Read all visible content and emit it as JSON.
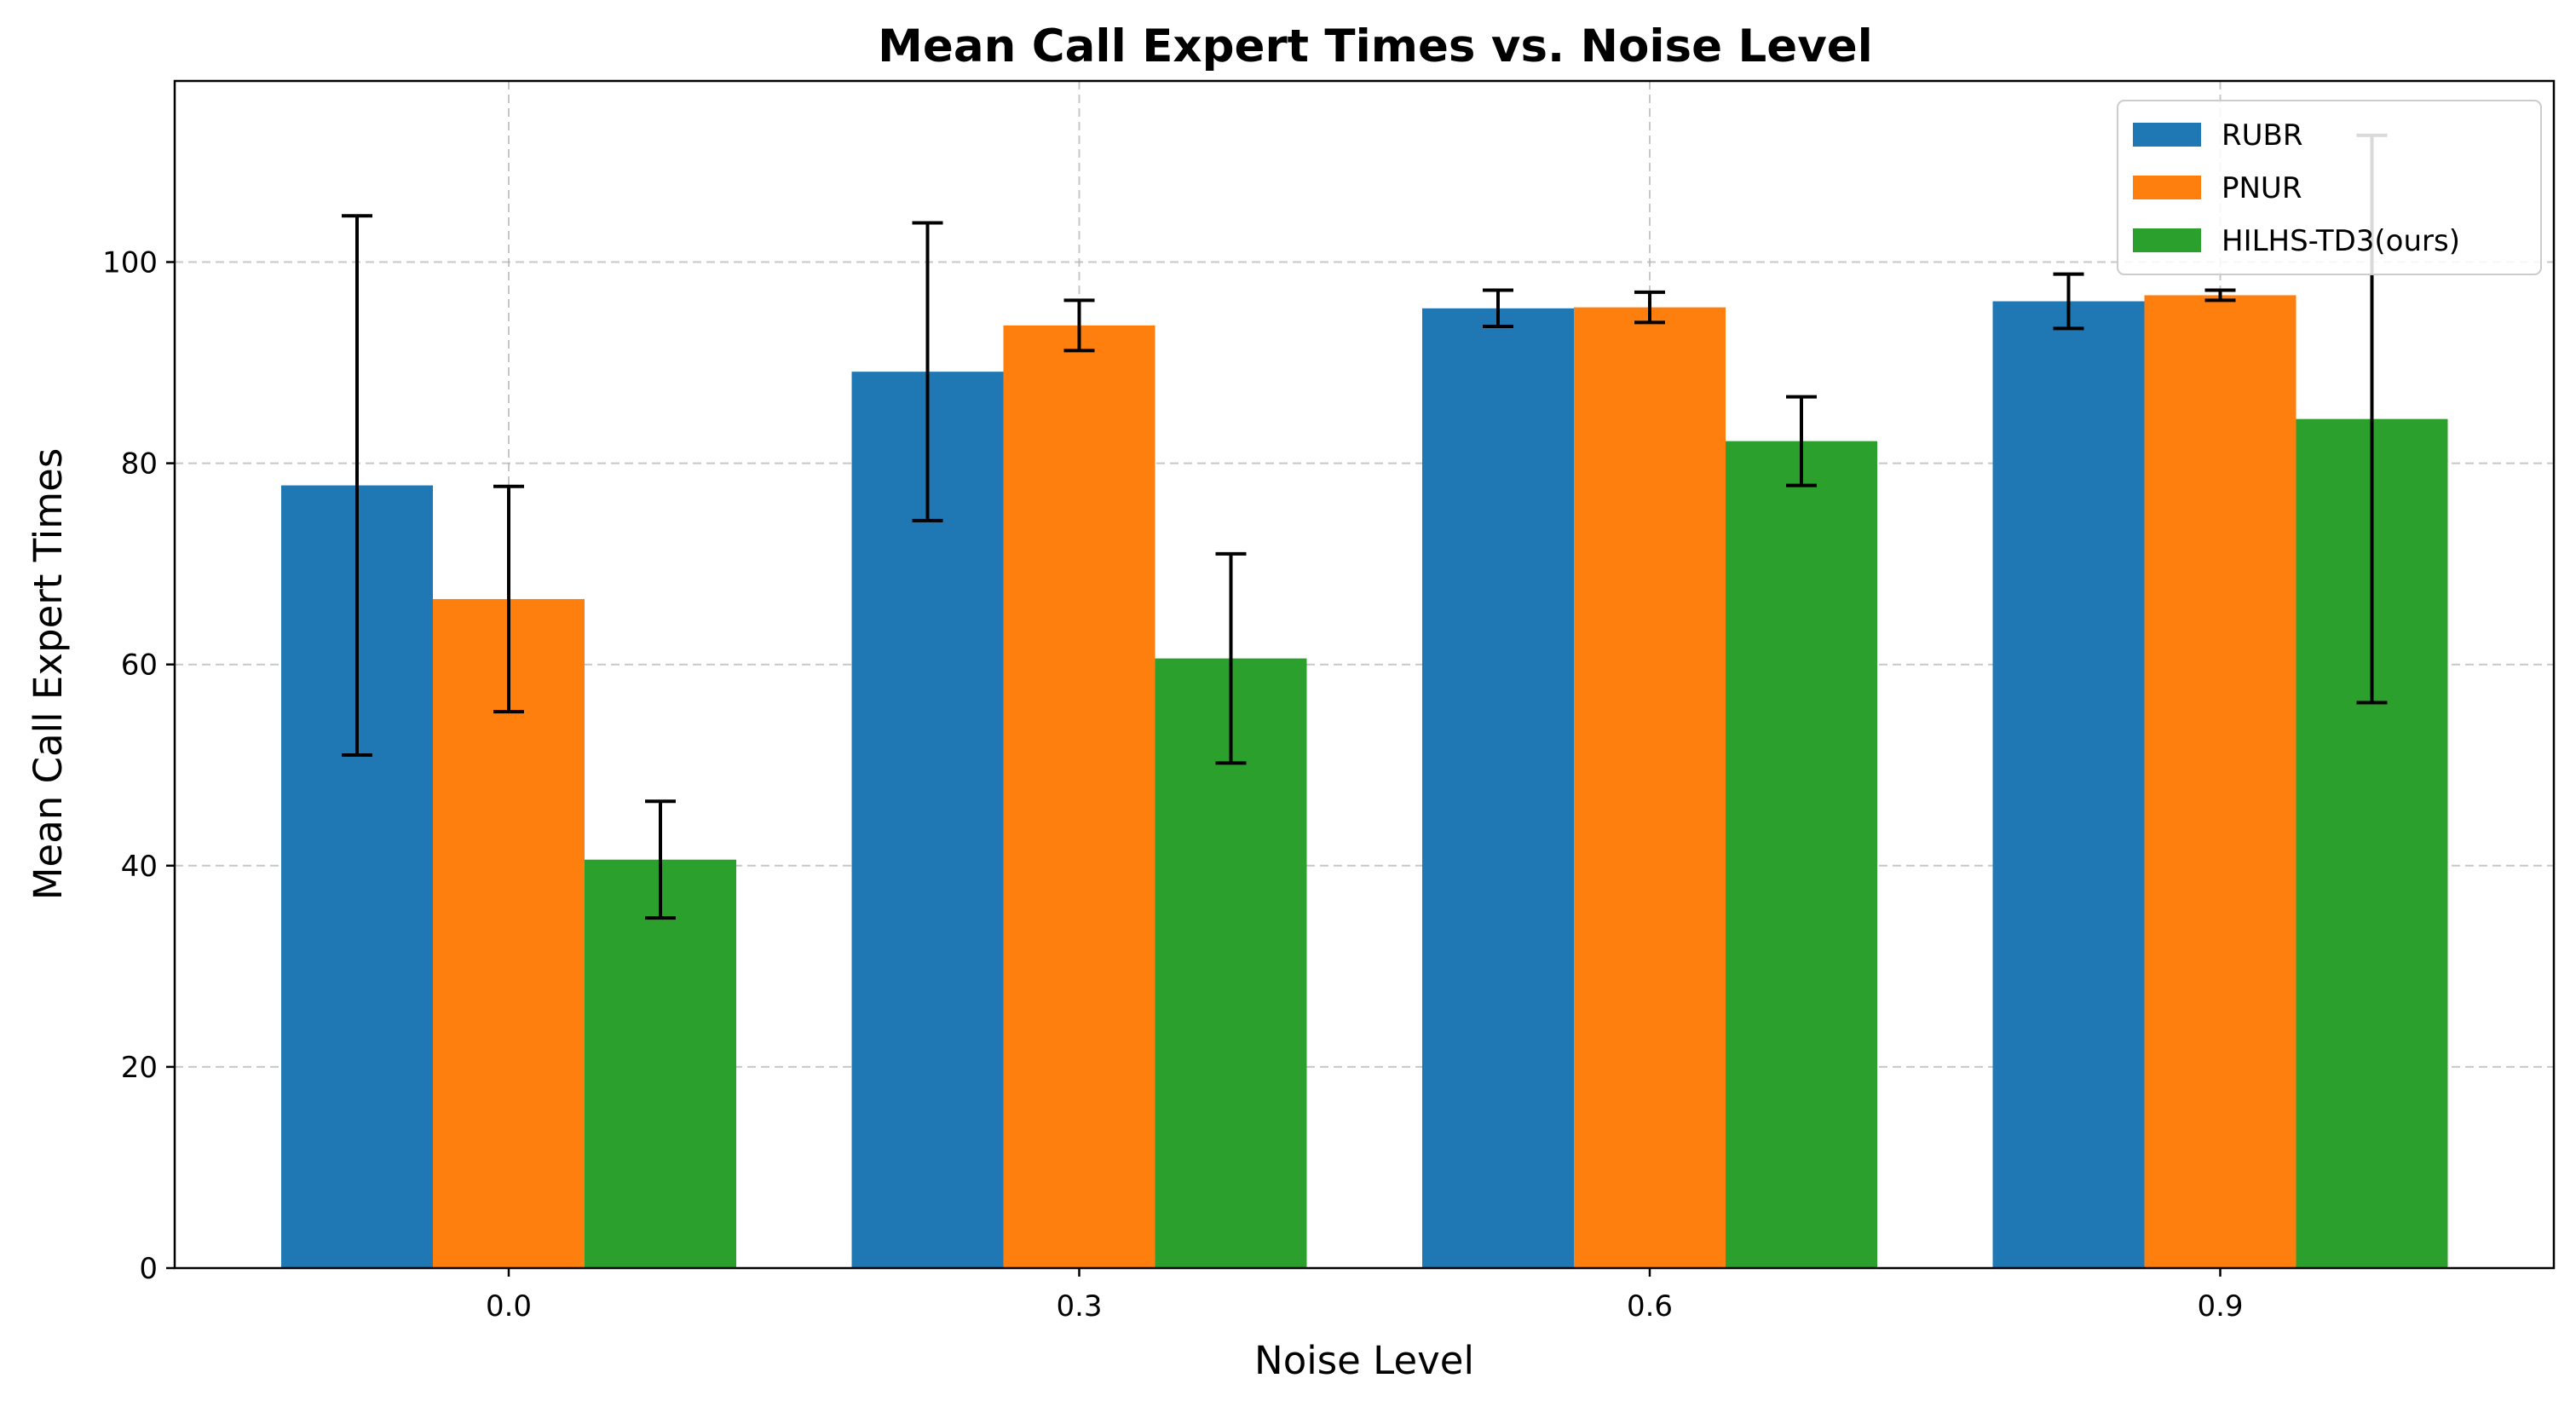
{
  "chart_data": {
    "type": "bar",
    "title": "Mean Call Expert Times vs. Noise Level",
    "xlabel": "Noise Level",
    "ylabel": "Mean Call Expert Times",
    "categories": [
      "0.0",
      "0.3",
      "0.6",
      "0.9"
    ],
    "ylim": [
      0,
      118
    ],
    "yticks": [
      0,
      20,
      40,
      60,
      80,
      100
    ],
    "grid": true,
    "legend_position": "top-right",
    "series": [
      {
        "name": "RUBR",
        "color": "#1f77b4",
        "values": [
          77.8,
          89.1,
          95.4,
          96.1
        ],
        "errors": [
          26.8,
          14.8,
          1.8,
          2.7
        ]
      },
      {
        "name": "PNUR",
        "color": "#ff7f0e",
        "values": [
          66.5,
          93.7,
          95.5,
          96.7
        ],
        "errors": [
          11.2,
          2.5,
          1.5,
          0.5
        ]
      },
      {
        "name": "HILHS-TD3(ours)",
        "color": "#2ca02c",
        "values": [
          40.6,
          60.6,
          82.2,
          84.4
        ],
        "errors": [
          5.8,
          10.4,
          4.4,
          28.2
        ]
      }
    ]
  }
}
